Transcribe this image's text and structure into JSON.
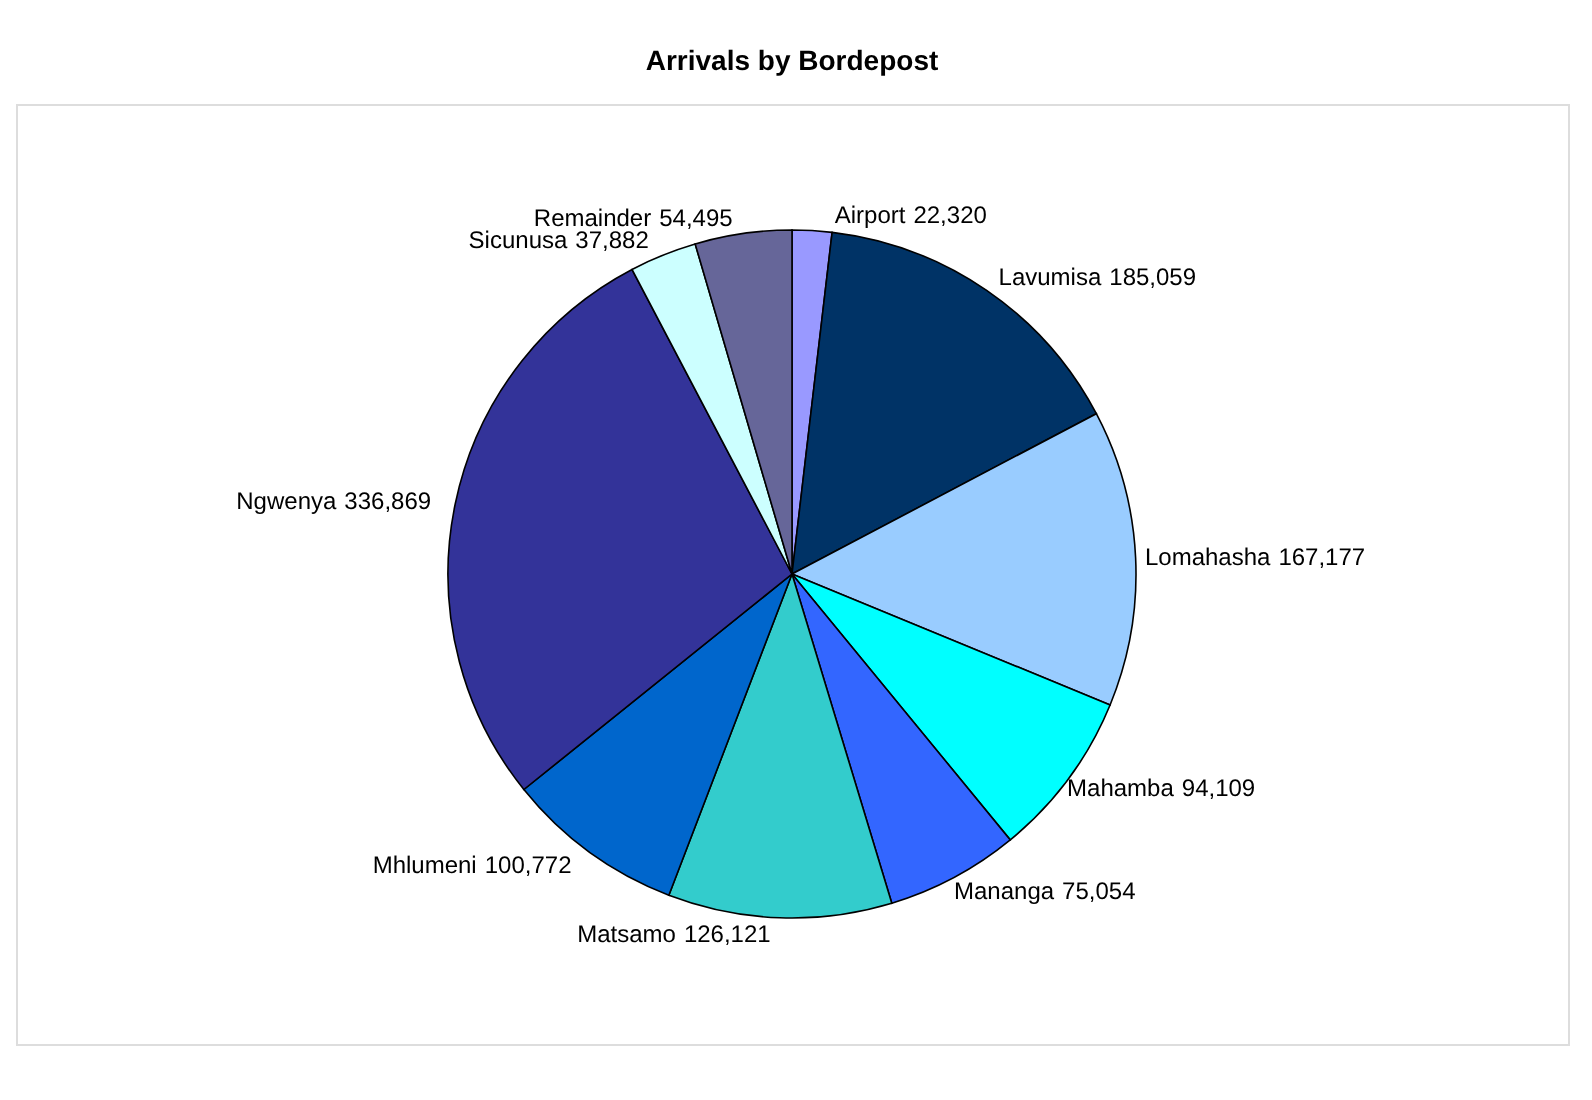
{
  "chart_data": {
    "type": "pie",
    "title": "Arrivals by Bordepost",
    "categories": [
      "Airport",
      "Lavumisa",
      "Lomahasha",
      "Mahamba",
      "Mananga",
      "Matsamo",
      "Mhlumeni",
      "Ngwenya",
      "Sicunusa",
      "Remainder"
    ],
    "values": [
      22320,
      185059,
      167177,
      94109,
      75054,
      126121,
      100772,
      336869,
      37882,
      54495
    ],
    "colors": [
      "#9999ff",
      "#003366",
      "#99ccff",
      "#00ffff",
      "#3366ff",
      "#33cccc",
      "#0066cc",
      "#333399",
      "#ccffff",
      "#666699"
    ],
    "value_labels": [
      "22,320",
      "185,059",
      "167,177",
      "94,109",
      "75,054",
      "126,121",
      "100,772",
      "336,869",
      "37,882",
      "54,495"
    ],
    "legend": false
  }
}
